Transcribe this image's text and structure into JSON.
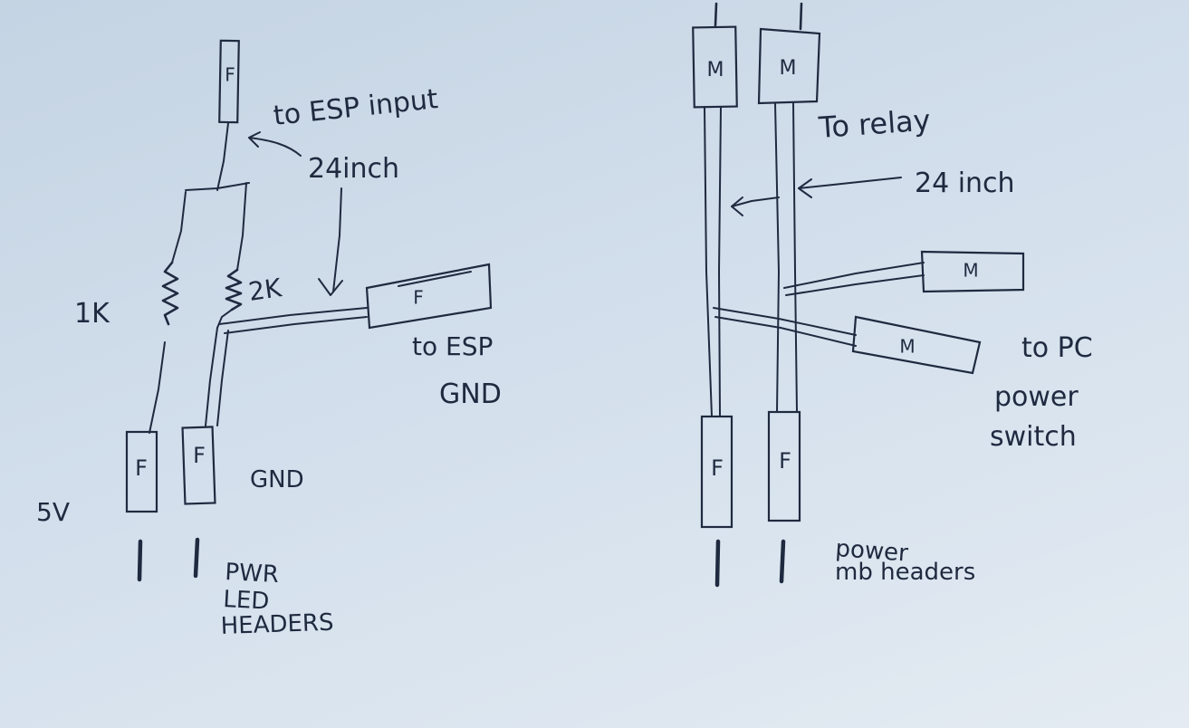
{
  "left": {
    "top_connector": "F",
    "label_esp_input": "to ESP input",
    "label_24inch": "24inch",
    "resistor_1k": "1K",
    "resistor_2k": "2K",
    "side_connector": "F",
    "label_esp_gnd_1": "to ESP",
    "label_esp_gnd_2": "GND",
    "bottom_connector_5v": "F",
    "bottom_connector_gnd": "F",
    "label_5v": "5V",
    "label_gnd": "GND",
    "headers_line1": "PWR",
    "headers_line2": "LED",
    "headers_line3": "HEADERS"
  },
  "right": {
    "top_connector_1": "M",
    "top_connector_2": "M",
    "label_relay": "To relay",
    "label_24inch": "24 inch",
    "side_connector_1": "M",
    "side_connector_2": "M",
    "label_pc_1": "to PC",
    "label_pc_2": "power",
    "label_pc_3": "switch",
    "bottom_connector_1": "F",
    "bottom_connector_2": "F",
    "headers_line1": "power",
    "headers_line2": "mb headers"
  }
}
